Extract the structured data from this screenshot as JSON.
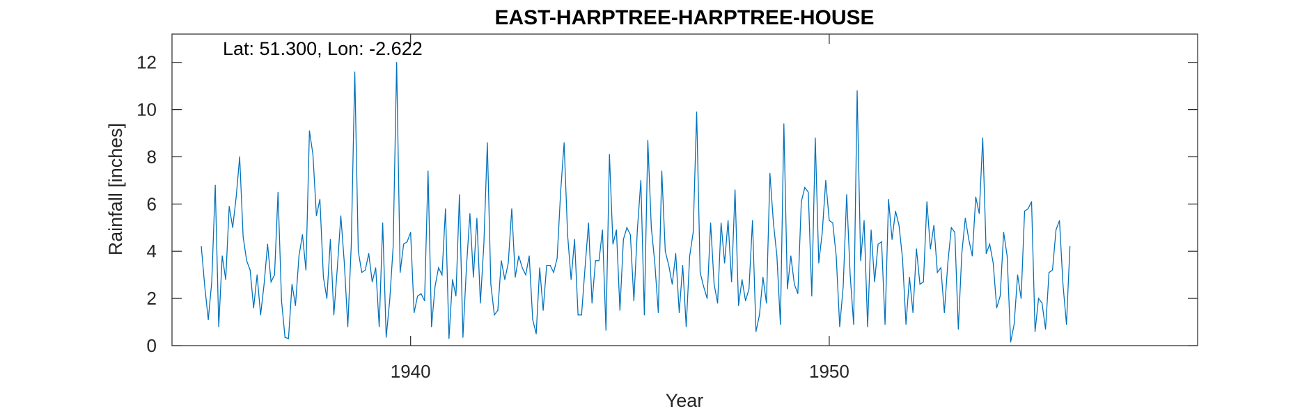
{
  "chart_data": {
    "type": "line",
    "title": "EAST-HARPTREE-HARPTREE-HOUSE",
    "annotation": "Lat: 51.300, Lon: -2.622",
    "xlabel": "Year",
    "ylabel": "Rainfall [inches]",
    "xlim": [
      1934.3,
      1958.8
    ],
    "ylim": [
      0,
      13.2
    ],
    "xticks": [
      1940,
      1950
    ],
    "yticks": [
      0,
      2,
      4,
      6,
      8,
      10,
      12
    ],
    "grid": false,
    "line_color": "#0072BD",
    "x_start": "1935-01",
    "x_step": "1 month",
    "series": [
      {
        "values": [
          4.2,
          2.5,
          1.1,
          2.7,
          6.8,
          0.8,
          3.8,
          2.8,
          5.9,
          5.0,
          6.3,
          8.0,
          4.6,
          3.6,
          3.2,
          1.6,
          3.0,
          1.3,
          2.6,
          4.3,
          2.7,
          3.0,
          6.5,
          1.9,
          0.35,
          0.3,
          2.6,
          1.7,
          3.8,
          4.7,
          3.2,
          9.1,
          8.1,
          5.5,
          6.2,
          2.9,
          2.0,
          4.5,
          1.3,
          3.3,
          5.5,
          3.5,
          0.8,
          4.3,
          11.6,
          4.0,
          3.1,
          3.2,
          3.9,
          2.7,
          3.3,
          0.8,
          5.2,
          0.35,
          1.9,
          4.2,
          12.0,
          3.1,
          4.3,
          4.4,
          4.8,
          1.4,
          2.1,
          2.2,
          1.9,
          7.4,
          0.8,
          2.5,
          3.3,
          3.0,
          5.8,
          0.3,
          2.8,
          2.1,
          6.4,
          0.35,
          3.3,
          5.6,
          2.9,
          5.4,
          1.8,
          4.3,
          8.6,
          2.6,
          1.3,
          1.5,
          3.6,
          2.8,
          3.5,
          5.8,
          2.9,
          3.8,
          3.3,
          3.0,
          3.8,
          1.1,
          0.5,
          3.3,
          1.5,
          3.4,
          3.4,
          3.1,
          3.7,
          6.5,
          8.6,
          4.7,
          2.8,
          4.5,
          1.3,
          1.3,
          3.3,
          5.2,
          1.8,
          3.6,
          3.6,
          4.9,
          0.65,
          8.1,
          4.3,
          4.9,
          1.5,
          4.5,
          5.0,
          4.7,
          1.9,
          4.9,
          7.0,
          1.3,
          8.7,
          5.0,
          3.5,
          1.4,
          7.4,
          4.0,
          3.4,
          2.6,
          3.9,
          1.4,
          3.4,
          0.8,
          3.8,
          4.8,
          9.9,
          3.1,
          2.5,
          2.0,
          5.2,
          2.6,
          1.8,
          5.2,
          3.5,
          5.3,
          2.7,
          6.6,
          1.7,
          2.8,
          1.9,
          2.4,
          5.3,
          0.6,
          1.3,
          2.9,
          1.8,
          7.3,
          5.2,
          3.8,
          0.9,
          9.4,
          2.4,
          3.8,
          2.6,
          2.2,
          6.1,
          6.7,
          6.5,
          2.1,
          8.8,
          3.5,
          4.8,
          7.0,
          5.3,
          5.2,
          3.8,
          0.8,
          2.5,
          6.4,
          3.0,
          0.9,
          10.8,
          3.6,
          5.3,
          0.8,
          4.9,
          2.7,
          4.3,
          4.4,
          0.9,
          6.2,
          4.5,
          5.7,
          5.1,
          3.7,
          0.9,
          2.9,
          1.4,
          4.1,
          2.6,
          2.7,
          6.1,
          4.1,
          5.1,
          3.1,
          3.3,
          1.4,
          3.5,
          5.0,
          4.8,
          0.7,
          3.9,
          5.4,
          4.5,
          3.8,
          6.3,
          5.6,
          8.8,
          3.9,
          4.3,
          3.5,
          1.6,
          2.1,
          4.8,
          3.8,
          0.15,
          0.9,
          3.0,
          2.0,
          5.7,
          5.8,
          6.1,
          0.6,
          2.0,
          1.8,
          0.7,
          3.1,
          3.2,
          4.9,
          5.3,
          2.6,
          0.9,
          4.2
        ]
      }
    ]
  }
}
